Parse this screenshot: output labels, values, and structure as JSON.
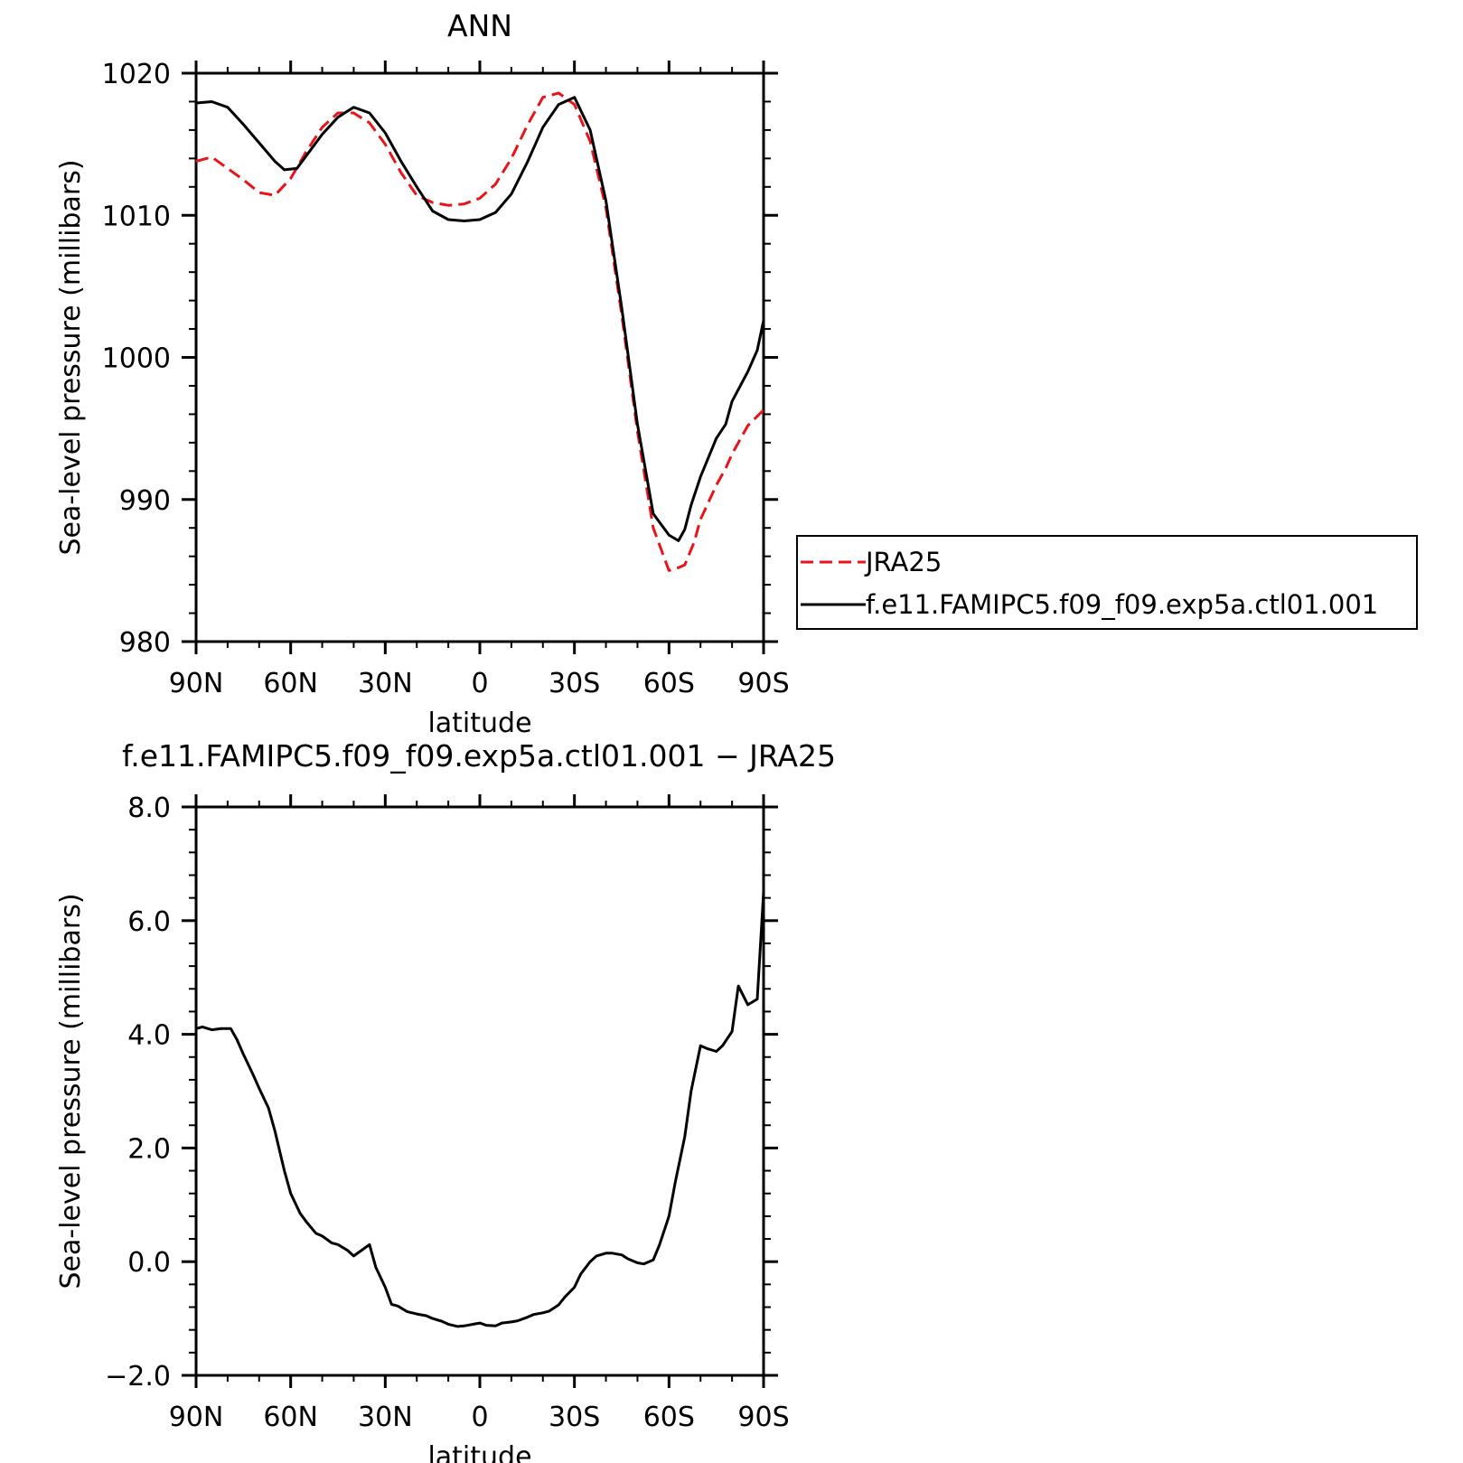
{
  "chart_data": [
    {
      "type": "line",
      "title": "ANN",
      "xlabel": "latitude",
      "ylabel": "Sea-level pressure (millibars)",
      "xlim": [
        90,
        -90
      ],
      "ylim": [
        980,
        1020
      ],
      "xticks": [
        90,
        60,
        30,
        0,
        -30,
        -60,
        -90
      ],
      "xtick_labels": [
        "90N",
        "60N",
        "30N",
        "0",
        "30S",
        "60S",
        "90S"
      ],
      "yticks": [
        980,
        990,
        1000,
        1010,
        1020
      ],
      "ytick_labels": [
        "980",
        "990",
        "1000",
        "1010",
        "1020"
      ],
      "legend_position": "outside-right",
      "series": [
        {
          "name": "JRA25",
          "color": "#e8141a",
          "dash": "dashed",
          "x": [
            90,
            85,
            80,
            75,
            70,
            65,
            60,
            55,
            50,
            45,
            40,
            35,
            30,
            25,
            20,
            15,
            10,
            5,
            0,
            -5,
            -10,
            -15,
            -20,
            -25,
            -30,
            -35,
            -40,
            -45,
            -50,
            -55,
            -60,
            -63,
            -65,
            -68,
            -70,
            -75,
            -78,
            -80,
            -85,
            -90
          ],
          "y": [
            1013.8,
            1014.1,
            1013.3,
            1012.5,
            1011.6,
            1011.4,
            1012.6,
            1014.5,
            1016.2,
            1017.2,
            1017.2,
            1016.5,
            1015.0,
            1013.0,
            1011.4,
            1010.9,
            1010.7,
            1010.8,
            1011.2,
            1012.2,
            1014.0,
            1016.3,
            1018.3,
            1018.6,
            1017.8,
            1015.2,
            1010.5,
            1003.0,
            994.8,
            988.0,
            985.0,
            985.2,
            985.4,
            987.0,
            988.6,
            991.0,
            992.2,
            993.2,
            995.2,
            996.3
          ]
        },
        {
          "name": "f.e11.FAMIPC5.f09_f09.exp5a.ctl01.001",
          "color": "#000000",
          "dash": "solid",
          "x": [
            90,
            85,
            80,
            75,
            70,
            65,
            62,
            58,
            55,
            50,
            45,
            40,
            35,
            30,
            25,
            20,
            15,
            10,
            5,
            0,
            -5,
            -10,
            -15,
            -20,
            -25,
            -30,
            -35,
            -40,
            -45,
            -50,
            -55,
            -60,
            -63,
            -65,
            -67,
            -70,
            -75,
            -78,
            -80,
            -85,
            -88,
            -90
          ],
          "y": [
            1017.9,
            1018.0,
            1017.6,
            1016.4,
            1015.1,
            1013.8,
            1013.2,
            1013.3,
            1014.2,
            1015.7,
            1016.9,
            1017.6,
            1017.2,
            1015.8,
            1013.8,
            1012.0,
            1010.3,
            1009.7,
            1009.6,
            1009.7,
            1010.2,
            1011.5,
            1013.7,
            1016.2,
            1017.8,
            1018.3,
            1016.0,
            1011.0,
            1003.5,
            995.3,
            989.0,
            987.5,
            987.1,
            987.9,
            989.6,
            991.6,
            994.3,
            995.3,
            996.9,
            999.0,
            1000.5,
            1002.6
          ]
        }
      ]
    },
    {
      "type": "line",
      "title": "f.e11.FAMIPC5.f09_f09.exp5a.ctl01.001 − JRA25",
      "xlabel": "latitude",
      "ylabel": "Sea-level pressure (millibars)",
      "xlim": [
        90,
        -90
      ],
      "ylim": [
        -2.0,
        8.0
      ],
      "xticks": [
        90,
        60,
        30,
        0,
        -30,
        -60,
        -90
      ],
      "xtick_labels": [
        "90N",
        "60N",
        "30N",
        "0",
        "30S",
        "60S",
        "90S"
      ],
      "yticks": [
        -2.0,
        0.0,
        2.0,
        4.0,
        6.0,
        8.0
      ],
      "ytick_labels": [
        "−2.0",
        "0.0",
        "2.0",
        "4.0",
        "6.0",
        "8.0"
      ],
      "series": [
        {
          "color": "#000000",
          "dash": "solid",
          "x": [
            90,
            88,
            85,
            82,
            79,
            77,
            75,
            72,
            70,
            67,
            65,
            62,
            60,
            57,
            55,
            52,
            50,
            47,
            45,
            42,
            40,
            37,
            35,
            33,
            30,
            28,
            26,
            23,
            20,
            17,
            15,
            12,
            10,
            7,
            5,
            2,
            0,
            -2,
            -5,
            -7,
            -10,
            -12,
            -15,
            -17,
            -20,
            -22,
            -25,
            -27,
            -30,
            -32,
            -35,
            -37,
            -40,
            -42,
            -45,
            -47,
            -50,
            -52,
            -55,
            -57,
            -60,
            -62,
            -65,
            -67,
            -70,
            -72,
            -75,
            -77,
            -80,
            -82,
            -85,
            -88,
            -90
          ],
          "y": [
            4.1,
            4.13,
            4.08,
            4.1,
            4.1,
            3.9,
            3.65,
            3.3,
            3.05,
            2.7,
            2.3,
            1.6,
            1.2,
            0.85,
            0.7,
            0.5,
            0.45,
            0.33,
            0.3,
            0.2,
            0.1,
            0.22,
            0.3,
            -0.1,
            -0.45,
            -0.75,
            -0.78,
            -0.88,
            -0.92,
            -0.95,
            -1.0,
            -1.05,
            -1.1,
            -1.14,
            -1.13,
            -1.1,
            -1.08,
            -1.12,
            -1.13,
            -1.08,
            -1.06,
            -1.04,
            -0.98,
            -0.93,
            -0.9,
            -0.87,
            -0.76,
            -0.62,
            -0.45,
            -0.22,
            0.0,
            0.1,
            0.15,
            0.15,
            0.12,
            0.05,
            -0.02,
            -0.04,
            0.03,
            0.3,
            0.8,
            1.4,
            2.2,
            3.0,
            3.8,
            3.75,
            3.7,
            3.8,
            4.05,
            4.85,
            4.52,
            4.62,
            6.5
          ]
        }
      ]
    }
  ]
}
